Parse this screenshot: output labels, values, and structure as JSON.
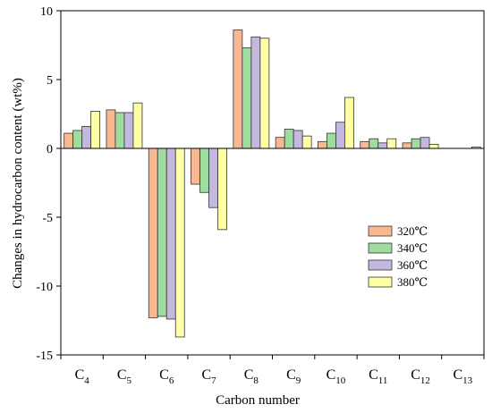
{
  "chart_data": {
    "type": "bar",
    "xlabel": "Carbon number",
    "ylabel": "Changes in hydrocarbon content (wt%)",
    "ylim": [
      -15,
      10
    ],
    "yticks": [
      -15,
      -10,
      -5,
      0,
      5,
      10
    ],
    "categories": [
      {
        "base": "C",
        "sub": "4"
      },
      {
        "base": "C",
        "sub": "5"
      },
      {
        "base": "C",
        "sub": "6"
      },
      {
        "base": "C",
        "sub": "7"
      },
      {
        "base": "C",
        "sub": "8"
      },
      {
        "base": "C",
        "sub": "9"
      },
      {
        "base": "C",
        "sub": "10"
      },
      {
        "base": "C",
        "sub": "11"
      },
      {
        "base": "C",
        "sub": "12"
      },
      {
        "base": "C",
        "sub": "13"
      }
    ],
    "series": [
      {
        "name": "320℃",
        "color": "#F8B992",
        "values": [
          1.1,
          2.8,
          -12.3,
          -2.6,
          8.6,
          0.8,
          0.5,
          0.5,
          0.4,
          0
        ]
      },
      {
        "name": "340℃",
        "color": "#9FDCA0",
        "values": [
          1.3,
          2.6,
          -12.2,
          -3.2,
          7.3,
          1.4,
          1.1,
          0.7,
          0.7,
          0
        ]
      },
      {
        "name": "360℃",
        "color": "#C4B8E0",
        "values": [
          1.6,
          2.6,
          -12.4,
          -4.3,
          8.1,
          1.3,
          1.9,
          0.4,
          0.8,
          0
        ]
      },
      {
        "name": "380℃",
        "color": "#FFFFA6",
        "values": [
          2.7,
          3.3,
          -13.7,
          -5.9,
          8.0,
          0.9,
          3.7,
          0.7,
          0.3,
          0.1
        ]
      }
    ],
    "legend_position": "right"
  }
}
